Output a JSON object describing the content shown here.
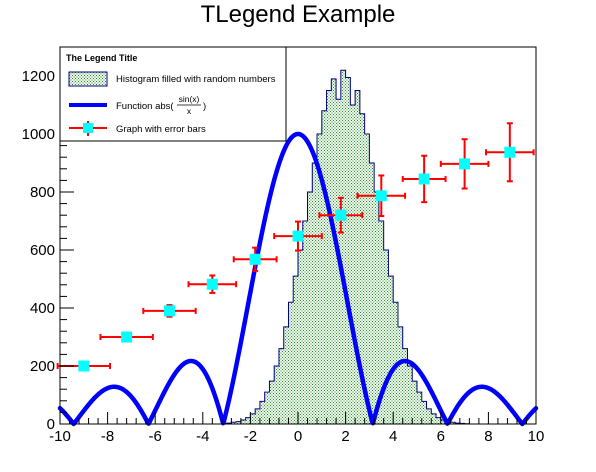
{
  "chart_data": {
    "type": "mixed",
    "title": "TLegend Example",
    "xlabel": "",
    "ylabel": "",
    "xlim": [
      -10,
      10
    ],
    "ylim": [
      0,
      1300
    ],
    "x_ticks": [
      -10,
      -8,
      -6,
      -4,
      -2,
      0,
      2,
      4,
      6,
      8,
      10
    ],
    "y_ticks": [
      0,
      200,
      400,
      600,
      800,
      1000,
      1200
    ],
    "grid": false,
    "legend": {
      "title": "The Legend Title",
      "placement": "top-left",
      "entries": [
        {
          "label": "Histogram filled with random numbers",
          "kind": "histogram"
        },
        {
          "label_prefix": "Function abs(",
          "label_num": "sin(x)",
          "label_den": "x",
          "label_suffix": ")",
          "kind": "function"
        },
        {
          "label": "Graph with error bars",
          "kind": "graph"
        }
      ]
    },
    "histogram": {
      "name": "Histogram filled with random numbers",
      "fill_color": "#cfe9cf",
      "line_color": "#000080",
      "bin_width": 0.2,
      "bin_edges_start": -3.2,
      "counts": [
        2,
        3,
        6,
        8,
        14,
        22,
        35,
        52,
        78,
        110,
        148,
        200,
        260,
        335,
        420,
        510,
        600,
        700,
        800,
        900,
        1000,
        1080,
        1150,
        1190,
        1120,
        1220,
        1195,
        1100,
        1150,
        1070,
        1000,
        900,
        800,
        700,
        600,
        510,
        420,
        335,
        260,
        200,
        148,
        110,
        78,
        52,
        35,
        22,
        14,
        8,
        6,
        3,
        2,
        1
      ]
    },
    "function": {
      "name": "Function abs(sin(x)/x)",
      "formula": "1000*abs(sin(x)/x)",
      "color": "#0000ff"
    },
    "graph": {
      "name": "Graph with error bars",
      "marker_color": "#00ffff",
      "error_color": "#ff0000",
      "points": [
        {
          "x": -9.0,
          "y": 200,
          "ex": 1.1,
          "ey": 5
        },
        {
          "x": -7.2,
          "y": 300,
          "ex": 1.1,
          "ey": 10
        },
        {
          "x": -5.4,
          "y": 390,
          "ex": 1.1,
          "ey": 20
        },
        {
          "x": -3.6,
          "y": 482,
          "ex": 1.0,
          "ey": 30
        },
        {
          "x": -1.8,
          "y": 568,
          "ex": 0.9,
          "ey": 40
        },
        {
          "x": 0.0,
          "y": 648,
          "ex": 1.0,
          "ey": 50
        },
        {
          "x": 1.8,
          "y": 720,
          "ex": 0.9,
          "ey": 60
        },
        {
          "x": 3.5,
          "y": 787,
          "ex": 1.0,
          "ey": 70
        },
        {
          "x": 5.3,
          "y": 845,
          "ex": 0.9,
          "ey": 80
        },
        {
          "x": 7.0,
          "y": 897,
          "ex": 1.0,
          "ey": 85
        },
        {
          "x": 8.9,
          "y": 937,
          "ex": 1.0,
          "ey": 100
        }
      ]
    }
  }
}
